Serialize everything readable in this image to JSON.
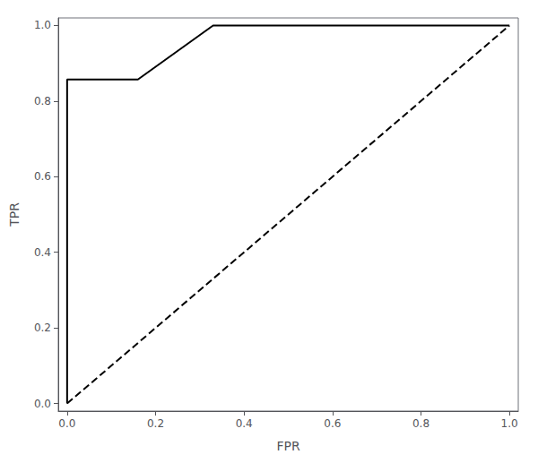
{
  "chart_data": {
    "type": "line",
    "xlabel": "FPR",
    "ylabel": "TPR",
    "xlim": [
      -0.02,
      1.02
    ],
    "ylim": [
      -0.02,
      1.02
    ],
    "xticks": [
      {
        "value": 0.0,
        "label": "0.0"
      },
      0.2,
      0.4,
      0.6,
      0.8,
      {
        "value": 1.0,
        "label": "1.0"
      }
    ],
    "yticks": [
      {
        "value": 0.0,
        "label": "0.0"
      },
      0.2,
      0.4,
      0.6,
      0.8,
      {
        "value": 1.0,
        "label": "1.0"
      }
    ],
    "grid": false,
    "series": [
      {
        "x": [
          0.0,
          0.0,
          0.16,
          0.33,
          1.0
        ],
        "values": [
          0.0,
          0.857,
          0.857,
          1.0,
          1.0
        ],
        "color": "#000000",
        "line_style": "solid"
      },
      {
        "x": [
          0.0,
          1.0
        ],
        "values": [
          0.0,
          1.0
        ],
        "color": "#000000",
        "line_style": "dashed"
      }
    ]
  }
}
